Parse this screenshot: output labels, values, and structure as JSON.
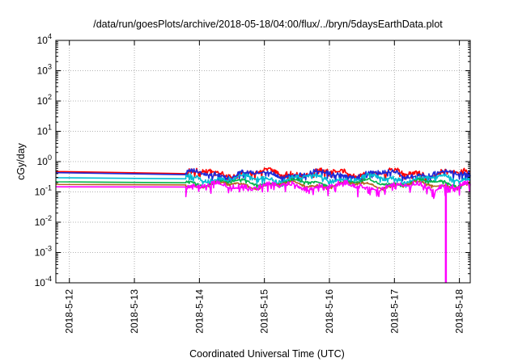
{
  "chart_data": {
    "type": "line",
    "title": "/data/run/goesPlots/archive/2018-05-18/04:00/flux/../bryn/5daysEarthData.plot",
    "xlabel": "Coordinated Universal Time (UTC)",
    "ylabel": "cGy/day",
    "y_scale": "log",
    "ylim": [
      0.0001,
      10000
    ],
    "xlim": [
      "2018-05-11 19:00",
      "2018-05-18 04:00"
    ],
    "grid": true,
    "y_ticks": [
      {
        "base": "10",
        "exp": "-4",
        "value": 0.0001
      },
      {
        "base": "10",
        "exp": "-3",
        "value": 0.001
      },
      {
        "base": "10",
        "exp": "-2",
        "value": 0.01
      },
      {
        "base": "10",
        "exp": "-1",
        "value": 0.1
      },
      {
        "base": "10",
        "exp": "0",
        "value": 1
      },
      {
        "base": "10",
        "exp": "1",
        "value": 10
      },
      {
        "base": "10",
        "exp": "2",
        "value": 100
      },
      {
        "base": "10",
        "exp": "3",
        "value": 1000
      },
      {
        "base": "10",
        "exp": "4",
        "value": 10000
      }
    ],
    "x_ticks": [
      {
        "label": "2018-5-12",
        "value": "2018-05-12 00:00"
      },
      {
        "label": "2018-5-13",
        "value": "2018-05-13 00:00"
      },
      {
        "label": "2018-5-14",
        "value": "2018-05-14 00:00"
      },
      {
        "label": "2018-5-15",
        "value": "2018-05-15 00:00"
      },
      {
        "label": "2018-5-16",
        "value": "2018-05-16 00:00"
      },
      {
        "label": "2018-5-17",
        "value": "2018-05-17 00:00"
      },
      {
        "label": "2018-5-18",
        "value": "2018-05-18 00:00"
      }
    ],
    "gap": {
      "start": "2018-05-11 19:30",
      "end": "2018-05-13 19:00"
    },
    "series": [
      {
        "color": "#ff0000",
        "start": 0.48,
        "end": 0.4,
        "base": 0.4,
        "noise": 0.28
      },
      {
        "color": "#1f2bd8",
        "start": 0.44,
        "end": 0.37,
        "base": 0.37,
        "noise": 0.26
      },
      {
        "color": "#00bcd4",
        "start": 0.3,
        "end": 0.27,
        "base": 0.27,
        "noise": 0.22
      },
      {
        "color": "#00b34a",
        "start": 0.22,
        "end": 0.2,
        "base": 0.2,
        "noise": 0.12
      },
      {
        "color": "#b5651d",
        "start": 0.18,
        "end": 0.17,
        "base": 0.17,
        "noise": 0.1
      },
      {
        "color": "#ff00ff",
        "start": 0.15,
        "end": 0.145,
        "base": 0.145,
        "noise": 0.35
      }
    ],
    "spike": {
      "time": "2018-05-17 19:00",
      "value": 0.0001
    }
  }
}
